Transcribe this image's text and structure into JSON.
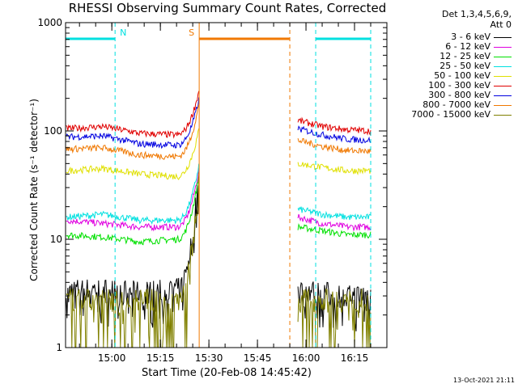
{
  "chart_data": {
    "type": "line",
    "title": "RHESSI Observing Summary Count Rates, Corrected",
    "xlabel": "Start Time (20-Feb-08 14:45:42)",
    "ylabel": "Corrected Count Rate (s⁻¹ detector⁻¹)",
    "y_scale": "log",
    "ylim": [
      1,
      1000
    ],
    "xlim": [
      "14:45:42",
      "16:25"
    ],
    "x_ticks": [
      "15:00",
      "15:15",
      "15:30",
      "15:45",
      "16:00",
      "16:15"
    ],
    "y_ticks": [
      "1",
      "10",
      "100",
      "1000"
    ],
    "detectors": "Det 1,3,4,5,6,9,",
    "attenuator": "Att 0",
    "grid": false,
    "legend_position": "right",
    "series": [
      {
        "name": "3 - 6 keV",
        "color": "#000000",
        "pre": [
          3.5,
          3.5,
          3.3,
          3.5
        ],
        "rise_end": 45,
        "post": [
          3.5,
          3.3,
          3.0,
          3.2
        ]
      },
      {
        "name": "6 - 12 keV",
        "color": "#e000e0",
        "pre": [
          15,
          14,
          13,
          13
        ],
        "rise_end": 45,
        "post": [
          16,
          14,
          13,
          13
        ]
      },
      {
        "name": "12 - 25 keV",
        "color": "#00e000",
        "pre": [
          11,
          10.5,
          9.5,
          10
        ],
        "rise_end": 40,
        "post": [
          13,
          12,
          11,
          11
        ]
      },
      {
        "name": "25 - 50 keV",
        "color": "#00e0e0",
        "pre": [
          16,
          17,
          15,
          15
        ],
        "rise_end": 50,
        "post": [
          19,
          17,
          16,
          16
        ]
      },
      {
        "name": "50 - 100 keV",
        "color": "#e0e000",
        "pre": [
          43,
          45,
          40,
          38
        ],
        "rise_end": 105,
        "post": [
          50,
          46,
          43,
          43
        ]
      },
      {
        "name": "100 - 300 keV",
        "color": "#e00000",
        "pre": [
          105,
          110,
          95,
          92
        ],
        "rise_end": 240,
        "post": [
          125,
          110,
          103,
          100
        ]
      },
      {
        "name": "300 - 800 keV",
        "color": "#0000e0",
        "pre": [
          88,
          90,
          76,
          74
        ],
        "rise_end": 200,
        "post": [
          105,
          92,
          84,
          82
        ]
      },
      {
        "name": "800 - 7000 keV",
        "color": "#f07800",
        "pre": [
          68,
          70,
          60,
          58
        ],
        "rise_end": 180,
        "post": [
          82,
          72,
          66,
          65
        ]
      },
      {
        "name": "7000 - 15000 keV",
        "color": "#808000",
        "pre": [
          2.8,
          2.8,
          2.8,
          2.8
        ],
        "rise_end": 38,
        "post": [
          2.8,
          2.8,
          2.8,
          2.8
        ]
      }
    ],
    "flags": [
      {
        "label": "N",
        "color": "#00e0e0",
        "spans": [
          [
            "14:45:42",
            "15:01"
          ],
          [
            "16:03",
            "16:20"
          ]
        ]
      },
      {
        "label": "S",
        "color": "#f07800",
        "spans": [
          [
            "15:27",
            "15:55"
          ]
        ]
      }
    ],
    "data_gap": [
      "15:27",
      "15:56"
    ]
  },
  "footer": {
    "timestamp": "13-Oct-2021 21:11"
  }
}
